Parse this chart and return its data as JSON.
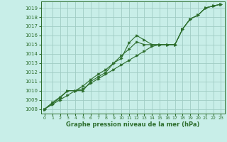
{
  "title": "Graphe pression niveau de la mer (hPa)",
  "background_color": "#c8eee8",
  "grid_color": "#a0ccc4",
  "line_color": "#2d6e2d",
  "x_ticks": [
    0,
    1,
    2,
    3,
    4,
    5,
    6,
    7,
    8,
    9,
    10,
    11,
    12,
    13,
    14,
    15,
    16,
    17,
    18,
    19,
    20,
    21,
    22,
    23
  ],
  "y_ticks": [
    1008,
    1009,
    1010,
    1011,
    1012,
    1013,
    1014,
    1015,
    1016,
    1017,
    1018,
    1019
  ],
  "ylim": [
    1007.5,
    1019.7
  ],
  "xlim": [
    -0.5,
    23.5
  ],
  "line1": [
    1008,
    1008.6,
    1009.2,
    1010.0,
    1010.0,
    1010.0,
    1011.0,
    1011.5,
    1012.0,
    1013.0,
    1013.5,
    1015.2,
    1016.0,
    1015.5,
    1015.0,
    1015.0,
    1015.0,
    1015.0,
    1016.7,
    1017.8,
    1018.2,
    1019.0,
    1019.2,
    1019.4
  ],
  "line2": [
    1008,
    1008.5,
    1009.0,
    1009.5,
    1010.0,
    1010.2,
    1010.8,
    1011.3,
    1011.8,
    1012.3,
    1012.8,
    1013.3,
    1013.8,
    1014.3,
    1014.8,
    1015.0,
    1015.0,
    1015.0,
    1016.7,
    1017.8,
    1018.2,
    1019.0,
    1019.2,
    1019.4
  ],
  "line3": [
    1008,
    1008.7,
    1009.3,
    1010.0,
    1010.0,
    1010.5,
    1011.2,
    1011.8,
    1012.3,
    1013.0,
    1013.8,
    1014.5,
    1015.3,
    1015.0,
    1015.0,
    1015.0,
    1015.0,
    1015.0,
    1016.7,
    1017.8,
    1018.2,
    1019.0,
    1019.2,
    1019.4
  ],
  "tick_fontsize": 5,
  "xlabel_fontsize": 6
}
